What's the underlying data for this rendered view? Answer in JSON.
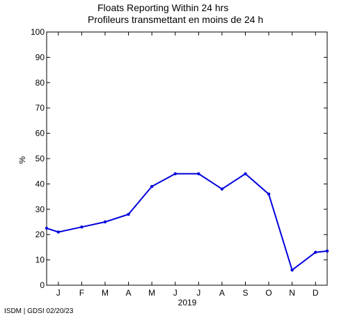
{
  "chart_data": {
    "type": "line",
    "title": "Floats Reporting Within 24 hrs",
    "subtitle": "Profileurs transmettant en moins de 24 h",
    "xlabel": "2019",
    "ylabel": "%",
    "x_tick_labels": [
      "J",
      "F",
      "M",
      "A",
      "M",
      "J",
      "J",
      "A",
      "S",
      "O",
      "N",
      "D"
    ],
    "y_ticks": [
      0,
      10,
      20,
      30,
      40,
      50,
      60,
      70,
      80,
      90,
      100
    ],
    "ylim": [
      0,
      100
    ],
    "xlim": [
      0.5,
      12.5
    ],
    "grid": false,
    "series": [
      {
        "color": "#0000dd",
        "x": [
          0.5,
          1,
          2,
          3,
          4,
          5,
          6,
          7,
          8,
          9,
          10,
          11,
          12,
          12.5
        ],
        "values": [
          22.5,
          21,
          23,
          25,
          28,
          39,
          44,
          44,
          38,
          44,
          36,
          6,
          13,
          13.5
        ]
      }
    ]
  },
  "footer": "ISDM | GDSI 02/20/23"
}
